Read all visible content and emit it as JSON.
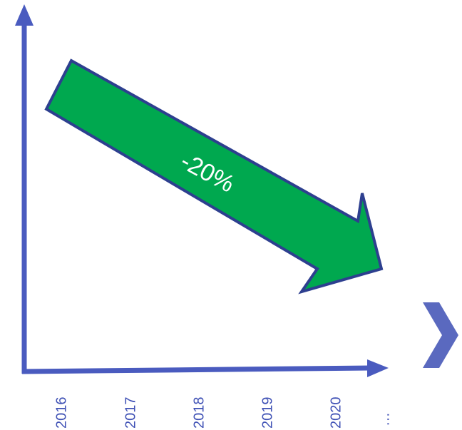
{
  "diagram": {
    "change_label": "-20%",
    "years": [
      "2016",
      "2017",
      "2018",
      "2019",
      "2020"
    ],
    "ellipsis": "…",
    "trend": "down",
    "next_icon": "chevron-right-icon"
  },
  "colors": {
    "axis": "#4a5bbf",
    "arrow_fill": "#00a84f",
    "arrow_stroke": "#2d3f8f",
    "label_text": "#ffffff",
    "tick_text": "#3f51b5",
    "chevron": "#5a69bf"
  }
}
